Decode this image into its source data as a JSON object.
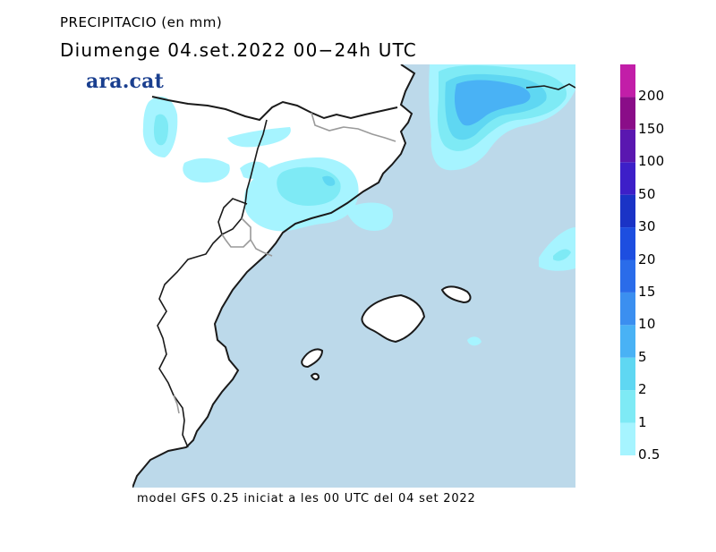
{
  "header": {
    "title": "PRECIPITACIO (en mm)",
    "subtitle": "Diumenge  04.set.2022  00−24h  UTC"
  },
  "logo": {
    "text": "ara.cat"
  },
  "footer": {
    "text": "model GFS 0.25 iniciat a les 00 UTC del 04 set 2022"
  },
  "legend": {
    "labels": [
      "0.5",
      "1",
      "2",
      "5",
      "10",
      "15",
      "20",
      "30",
      "50",
      "100",
      "150",
      "200"
    ],
    "colors": [
      "#a6f4ff",
      "#7eeaf5",
      "#5fd7f2",
      "#49b2f5",
      "#3b8ff0",
      "#2a6cea",
      "#1d4ee0",
      "#1a33c6",
      "#3d1fc8",
      "#5a17b0",
      "#8a0d88",
      "#c21ea8"
    ]
  },
  "map_colors": {
    "sea": "#bcd9ea",
    "land": "#ffffff",
    "precip_05": "#a6f4ff",
    "precip_1": "#7eeaf5",
    "precip_2": "#5fd7f2",
    "precip_5": "#49b2f5",
    "coast": "#1a1a1a",
    "border": "#9a9a9a"
  }
}
